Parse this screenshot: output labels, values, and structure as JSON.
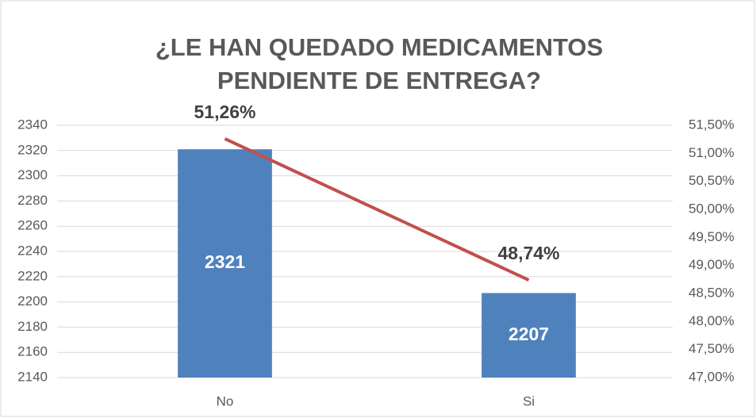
{
  "chart_data": {
    "type": "bar-line",
    "title": [
      "¿LE HAN QUEDADO MEDICAMENTOS",
      "PENDIENTE DE ENTREGA?"
    ],
    "categories": [
      "No",
      "Si"
    ],
    "series": [
      {
        "type": "bar",
        "color": "#4f81bd",
        "values": [
          2321,
          2207
        ]
      },
      {
        "type": "line",
        "axis": "y2",
        "color": "#c0504d",
        "values": [
          51.26,
          48.74
        ],
        "value_labels": [
          "51,26%",
          "48,74%"
        ]
      }
    ],
    "ylim": [
      2140,
      2340
    ],
    "yticks": [
      2140,
      2160,
      2180,
      2200,
      2220,
      2240,
      2260,
      2280,
      2300,
      2320,
      2340
    ],
    "y2lim": [
      47,
      51.5
    ],
    "y2ticks": [
      {
        "value": 47,
        "label": "47,00%"
      },
      {
        "value": 47.5,
        "label": "47,50%"
      },
      {
        "value": 48,
        "label": "48,00%"
      },
      {
        "value": 48.5,
        "label": "48,50%"
      },
      {
        "value": 49,
        "label": "49,00%"
      },
      {
        "value": 49.5,
        "label": "49,50%"
      },
      {
        "value": 50,
        "label": "50,00%"
      },
      {
        "value": 50.5,
        "label": "50,50%"
      },
      {
        "value": 51,
        "label": "51,00%"
      },
      {
        "value": 51.5,
        "label": "51,50%"
      }
    ],
    "grid": true
  }
}
